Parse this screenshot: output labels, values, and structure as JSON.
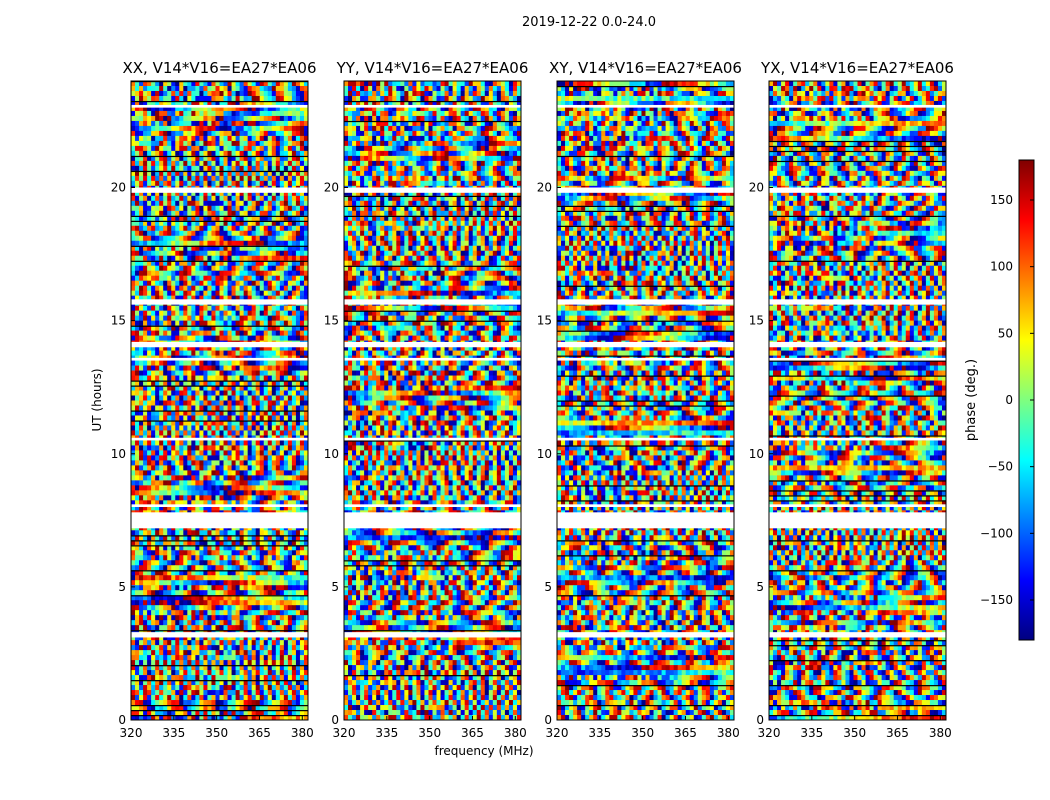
{
  "suptitle": "2019-12-22 0.0-24.0",
  "colorbar": {
    "label": "phase (deg.)",
    "range": [
      -180,
      180
    ],
    "ticks": [
      150,
      100,
      50,
      0,
      -50,
      -100,
      -150
    ],
    "tick_labels": [
      "150",
      "100",
      "50",
      "0",
      "−50",
      "−100",
      "−150"
    ],
    "colormap": "jet",
    "colors": [
      "#000080",
      "#0000ff",
      "#00ffff",
      "#7fff7f",
      "#ffff00",
      "#ff0000",
      "#800000"
    ]
  },
  "chart_data": [
    {
      "type": "heatmap",
      "title": "XX, V14*V16=EA27*EA06",
      "xlabel": "",
      "ylabel": "UT (hours)",
      "xlim": [
        320,
        382
      ],
      "ylim": [
        0,
        24
      ],
      "x_ticks": [
        320,
        335,
        350,
        365,
        380
      ],
      "y_ticks": [
        0,
        5,
        10,
        15,
        20
      ],
      "value_label": "phase (deg.)",
      "value_range": [
        -180,
        180
      ]
    },
    {
      "type": "heatmap",
      "title": "YY, V14*V16=EA27*EA06",
      "xlabel": "frequency (MHz)",
      "ylabel": "",
      "xlim": [
        320,
        382
      ],
      "ylim": [
        0,
        24
      ],
      "x_ticks": [
        320,
        335,
        350,
        365,
        380
      ],
      "y_ticks": [
        0,
        5,
        10,
        15,
        20
      ],
      "value_label": "phase (deg.)",
      "value_range": [
        -180,
        180
      ]
    },
    {
      "type": "heatmap",
      "title": "XY, V14*V16=EA27*EA06",
      "xlabel": "",
      "ylabel": "",
      "xlim": [
        320,
        382
      ],
      "ylim": [
        0,
        24
      ],
      "x_ticks": [
        320,
        335,
        350,
        365,
        380
      ],
      "y_ticks": [
        0,
        5,
        10,
        15,
        20
      ],
      "value_label": "phase (deg.)",
      "value_range": [
        -180,
        180
      ]
    },
    {
      "type": "heatmap",
      "title": "YX, V14*V16=EA27*EA06",
      "xlabel": "",
      "ylabel": "",
      "xlim": [
        320,
        382
      ],
      "ylim": [
        0,
        24
      ],
      "x_ticks": [
        320,
        335,
        350,
        365,
        380
      ],
      "y_ticks": [
        0,
        5,
        10,
        15,
        20
      ],
      "value_label": "phase (deg.)",
      "value_range": [
        -180,
        180
      ]
    }
  ],
  "flagged_time_ranges_hours": [
    [
      7.2,
      7.8
    ],
    [
      3.1,
      3.3
    ],
    [
      15.6,
      15.8
    ],
    [
      14.0,
      14.2
    ],
    [
      19.8,
      20.0
    ],
    [
      8.0,
      8.1
    ],
    [
      10.5,
      10.6
    ],
    [
      13.5,
      13.6
    ],
    [
      23.0,
      23.1
    ]
  ]
}
